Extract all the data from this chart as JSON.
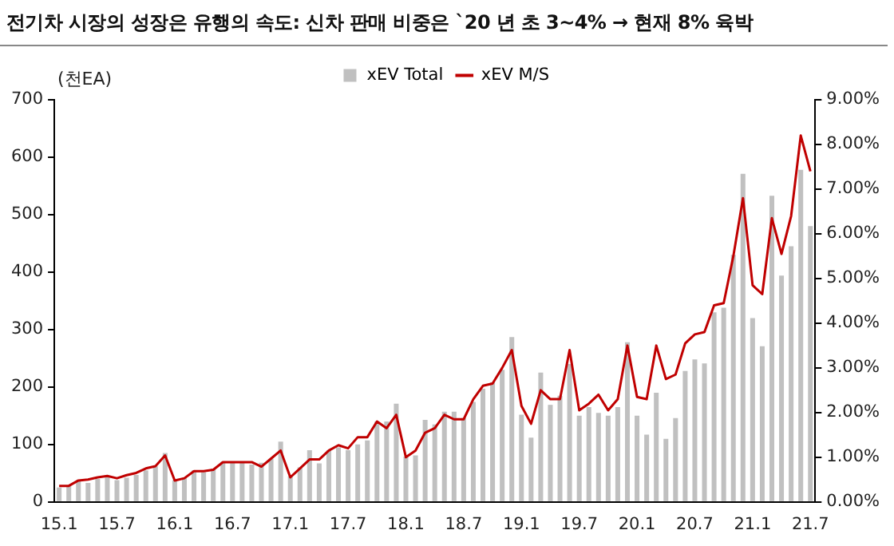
{
  "chart_data": {
    "type": "bar",
    "title": "전기차 시장의 성장은 유행의 속도: 신차 판매 비중은 `20 년 초 3~4% → 현재 8% 육박",
    "ylabel": "(천EA)",
    "categories": [
      "15.1",
      null,
      null,
      null,
      null,
      null,
      "15.7",
      null,
      null,
      null,
      null,
      null,
      "16.1",
      null,
      null,
      null,
      null,
      null,
      "16.7",
      null,
      null,
      null,
      null,
      null,
      "17.1",
      null,
      null,
      null,
      null,
      null,
      "17.7",
      null,
      null,
      null,
      null,
      null,
      "18.1",
      null,
      null,
      null,
      null,
      null,
      "18.7",
      null,
      null,
      null,
      null,
      null,
      "19.1",
      null,
      null,
      null,
      null,
      null,
      "19.7",
      null,
      null,
      null,
      null,
      null,
      "20.1",
      null,
      null,
      null,
      null,
      null,
      "20.7",
      null,
      null,
      null,
      null,
      null,
      "21.1",
      null,
      null,
      null,
      null,
      null,
      "21.7"
    ],
    "series": [
      {
        "name": "xEV Total",
        "color": "#c0c0c0",
        "values": [
          25,
          28,
          38,
          33,
          40,
          45,
          38,
          42,
          47,
          55,
          62,
          85,
          38,
          42,
          55,
          52,
          58,
          70,
          70,
          70,
          65,
          68,
          75,
          105,
          45,
          60,
          90,
          67,
          90,
          95,
          90,
          100,
          107,
          140,
          140,
          171,
          79,
          81,
          143,
          135,
          157,
          157,
          146,
          174,
          197,
          208,
          230,
          287,
          152,
          112,
          225,
          169,
          185,
          240,
          150,
          165,
          155,
          150,
          165,
          278,
          150,
          117,
          190,
          110,
          146,
          228,
          248,
          241,
          330,
          338,
          430,
          571,
          320,
          271,
          533,
          394,
          445,
          578,
          480
        ]
      },
      {
        "name": "xEV M/S",
        "type": "line",
        "axis": "y2",
        "color": "#c00000",
        "values": [
          0.36,
          0.36,
          0.48,
          0.5,
          0.55,
          0.58,
          0.53,
          0.6,
          0.65,
          0.75,
          0.8,
          1.04,
          0.48,
          0.53,
          0.69,
          0.69,
          0.72,
          0.89,
          0.89,
          0.89,
          0.89,
          0.79,
          0.97,
          1.15,
          0.55,
          0.75,
          0.95,
          0.95,
          1.15,
          1.27,
          1.2,
          1.45,
          1.45,
          1.8,
          1.65,
          1.95,
          1.0,
          1.15,
          1.55,
          1.65,
          1.95,
          1.85,
          1.85,
          2.3,
          2.6,
          2.65,
          3.0,
          3.4,
          2.15,
          1.75,
          2.5,
          2.3,
          2.3,
          3.4,
          2.05,
          2.2,
          2.4,
          2.05,
          2.3,
          3.5,
          2.35,
          2.3,
          3.5,
          2.75,
          2.85,
          3.55,
          3.75,
          3.8,
          4.4,
          4.45,
          5.5,
          6.8,
          4.85,
          4.65,
          6.35,
          5.55,
          6.4,
          8.2,
          7.4
        ]
      }
    ],
    "ylim": [
      0,
      700
    ],
    "yticks": [
      0,
      100,
      200,
      300,
      400,
      500,
      600,
      700
    ],
    "y2lim": [
      0,
      9
    ],
    "y2ticks": [
      {
        "value": 0,
        "label": "0.00%"
      },
      {
        "value": 1,
        "label": "1.00%"
      },
      {
        "value": 2,
        "label": "2.00%"
      },
      {
        "value": 3,
        "label": "3.00%"
      },
      {
        "value": 4,
        "label": "4.00%"
      },
      {
        "value": 5,
        "label": "5.00%"
      },
      {
        "value": 6,
        "label": "6.00%"
      },
      {
        "value": 7,
        "label": "7.00%"
      },
      {
        "value": 8,
        "label": "8.00%"
      },
      {
        "value": 9,
        "label": "9.00%"
      }
    ],
    "grid": false,
    "legend": "top",
    "marker": "none",
    "line_style": "solid"
  }
}
